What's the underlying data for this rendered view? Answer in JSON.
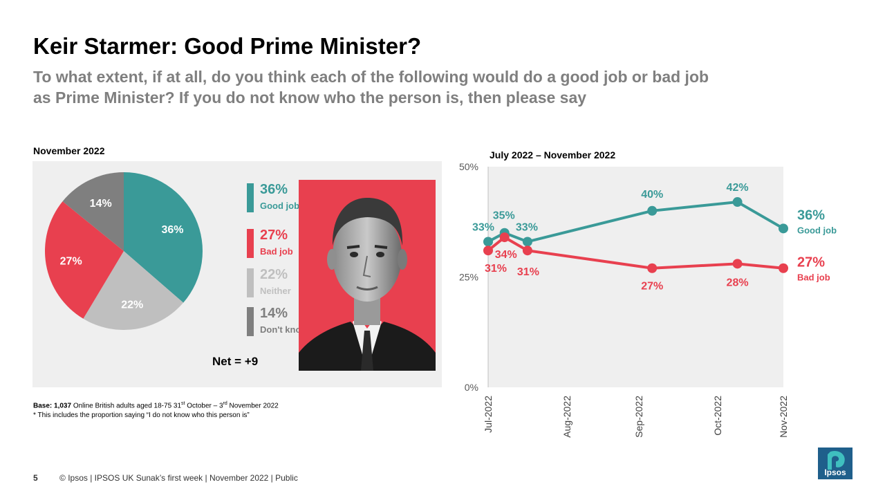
{
  "title": "Keir Starmer: Good Prime Minister?",
  "subtitle": "To what extent, if at all, do you think each of the following would do a good job or bad job as Prime Minister? If you do not know who the person is, then please say",
  "colors": {
    "good": "#3a9a98",
    "bad": "#e8404f",
    "neither": "#bfbfbf",
    "dontknow": "#7f7f7f",
    "panel": "#efefef"
  },
  "pie": {
    "period": "November 2022",
    "legend": [
      {
        "pct": "36%",
        "label": "Good job"
      },
      {
        "pct": "27%",
        "label": "Bad job"
      },
      {
        "pct": "22%",
        "label": "Neither"
      },
      {
        "pct": "14%",
        "label": "Don't know*"
      }
    ],
    "net": "Net = +9"
  },
  "line": {
    "period": "July 2022 – November 2022",
    "good_label": "Good job",
    "good_end": "36%",
    "bad_label": "Bad job",
    "bad_end": "27%"
  },
  "notes": {
    "base_bold": "Base: 1,037",
    "base_text": " Online British adults aged 18-75 31",
    "base_sup1": "st",
    "base_text2": " October – 3",
    "base_sup2": "rd",
    "base_text3": " November 2022",
    "footnote": "* This includes the proportion saying “I do not know who this person is”"
  },
  "footer": {
    "page": "5",
    "text": "© Ipsos | IPSOS UK Sunak’s first week | November 2022 | Public",
    "logo": "Ipsos"
  },
  "chart_data": [
    {
      "type": "pie",
      "title": "November 2022",
      "categories": [
        "Good job",
        "Neither",
        "Bad job",
        "Don't know*"
      ],
      "values": [
        36,
        22,
        27,
        14
      ],
      "labels": [
        "36%",
        "22%",
        "27%",
        "14%"
      ]
    },
    {
      "type": "line",
      "title": "July 2022 – November 2022",
      "x": [
        0,
        0.25,
        0.6,
        2.5,
        3.8,
        4.5
      ],
      "x_ticks": [
        "Jul-2022",
        "Aug-2022",
        "Sep-2022",
        "Oct-2022",
        "Nov-2022"
      ],
      "x_tick_values": [
        0,
        1.2,
        2.3,
        3.5,
        4.5
      ],
      "ylim": [
        0,
        50
      ],
      "y_ticks": [
        "0%",
        "25%",
        "50%"
      ],
      "y_tick_values": [
        0,
        25,
        50
      ],
      "series": [
        {
          "name": "Good job",
          "values": [
            33,
            35,
            33,
            40,
            42,
            36
          ],
          "labels": [
            "33%",
            "35%",
            "33%",
            "40%",
            "42%",
            ""
          ]
        },
        {
          "name": "Bad job",
          "values": [
            31,
            34,
            31,
            27,
            28,
            27
          ],
          "labels": [
            "31%",
            "34%",
            "31%",
            "27%",
            "28%",
            ""
          ]
        }
      ]
    }
  ]
}
